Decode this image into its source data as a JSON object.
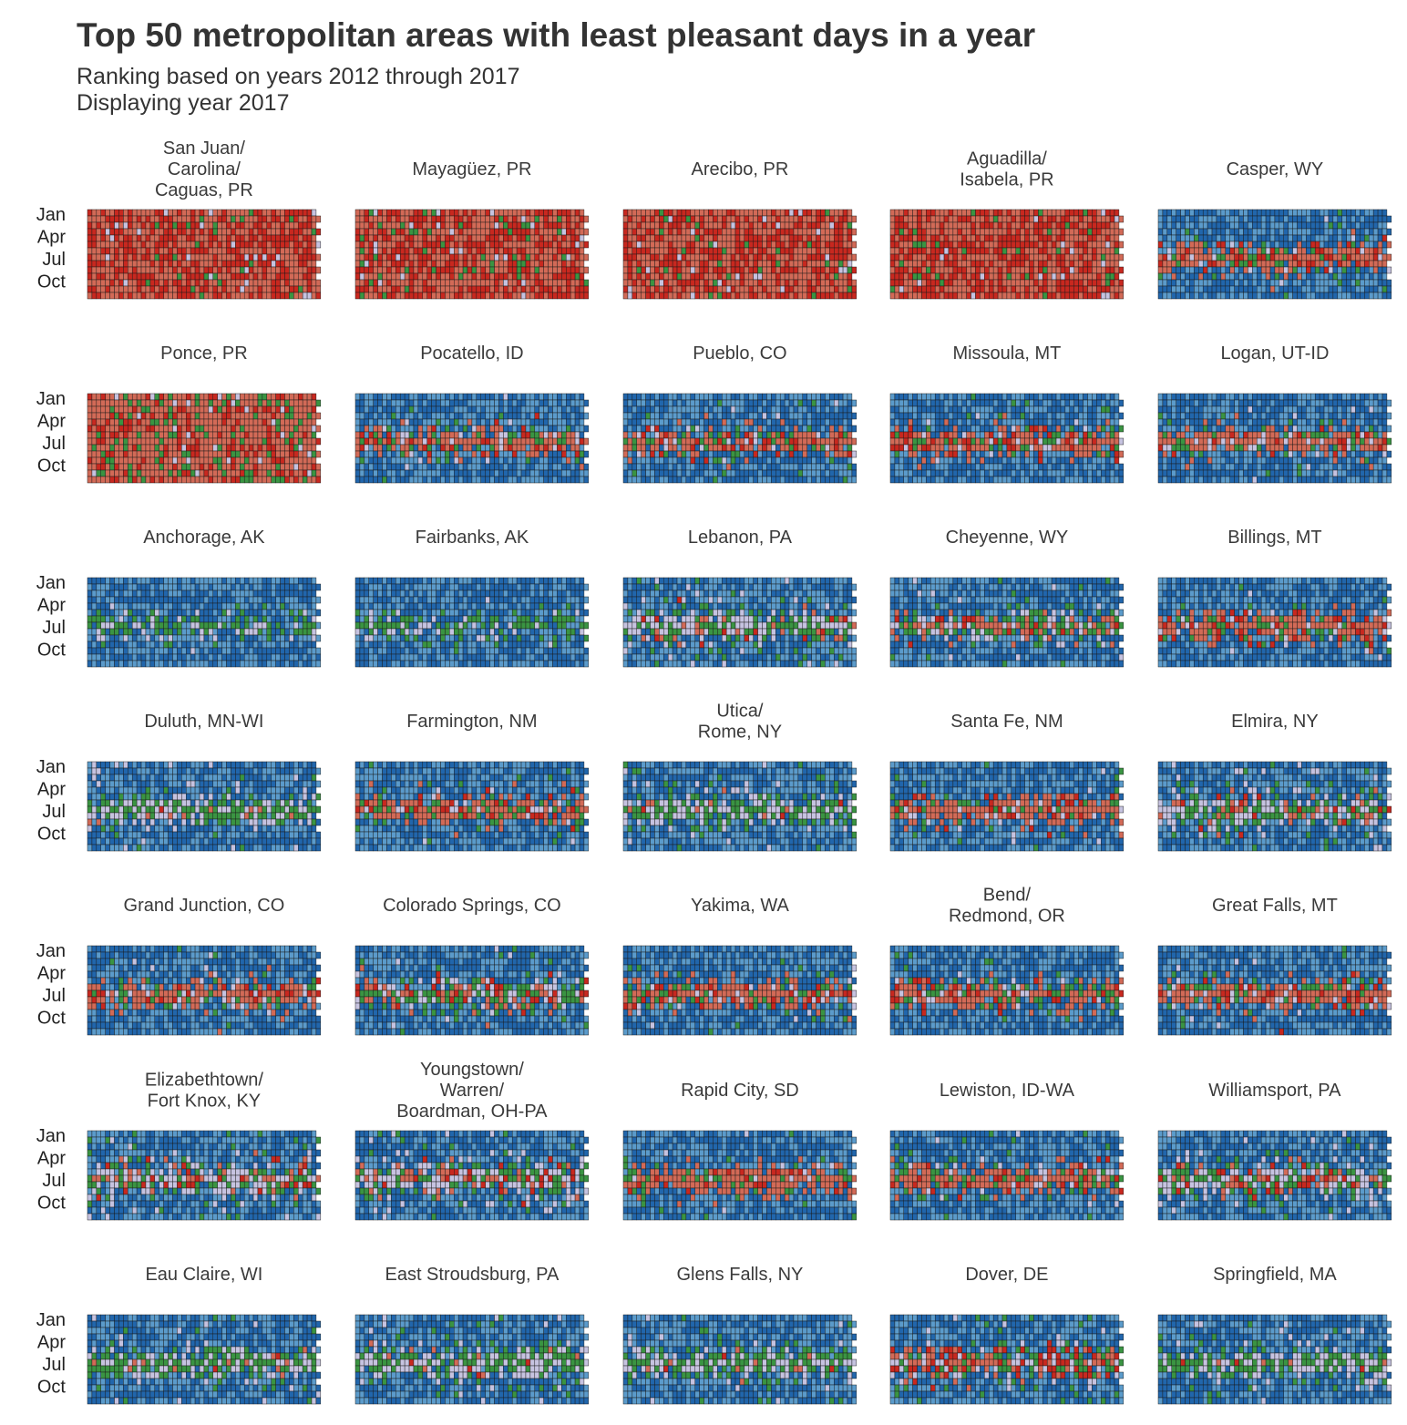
{
  "title": "Top 50 metropolitan areas with least pleasant days in a year",
  "subtitle_line1": "Ranking based on years 2012 through 2017",
  "subtitle_line2": "Displaying year 2017",
  "chart_data": {
    "type": "heatmap",
    "description_note": "",
    "y_tick_labels": [
      "Jan",
      "Apr",
      "Jul",
      "Oct"
    ],
    "colors": {
      "cold_dark": "#2166ac",
      "cold_light": "#5b9bcb",
      "pleasant": "#c6c3e0",
      "mild": "#3a9442",
      "hot_light": "#d26a57",
      "hot_dark": "#c8281f"
    },
    "panels": [
      {
        "name": [
          "San Juan/",
          "Carolina/",
          "Caguas, PR"
        ],
        "profile": "tropical"
      },
      {
        "name": [
          "Mayagüez, PR"
        ],
        "profile": "tropical"
      },
      {
        "name": [
          "Arecibo, PR"
        ],
        "profile": "tropical"
      },
      {
        "name": [
          "Aguadilla/",
          "Isabela, PR"
        ],
        "profile": "tropical"
      },
      {
        "name": [
          "Casper, WY"
        ],
        "profile": "cold_hot"
      },
      {
        "name": [
          "Ponce, PR"
        ],
        "profile": "tropical_light"
      },
      {
        "name": [
          "Pocatello, ID"
        ],
        "profile": "cold_hot"
      },
      {
        "name": [
          "Pueblo, CO"
        ],
        "profile": "cold_hot"
      },
      {
        "name": [
          "Missoula, MT"
        ],
        "profile": "cold_hot"
      },
      {
        "name": [
          "Logan, UT-ID"
        ],
        "profile": "cold_hot"
      },
      {
        "name": [
          "Anchorage, AK"
        ],
        "profile": "cold"
      },
      {
        "name": [
          "Fairbanks, AK"
        ],
        "profile": "cold"
      },
      {
        "name": [
          "Lebanon, PA"
        ],
        "profile": "humid"
      },
      {
        "name": [
          "Cheyenne, WY"
        ],
        "profile": "cold_mixed"
      },
      {
        "name": [
          "Billings, MT"
        ],
        "profile": "cold_hot"
      },
      {
        "name": [
          "Duluth, MN-WI"
        ],
        "profile": "cold_pleasant"
      },
      {
        "name": [
          "Farmington, NM"
        ],
        "profile": "cold_hot"
      },
      {
        "name": [
          "Utica/",
          "Rome, NY"
        ],
        "profile": "cold_pleasant"
      },
      {
        "name": [
          "Santa Fe, NM"
        ],
        "profile": "cold_hot"
      },
      {
        "name": [
          "Elmira, NY"
        ],
        "profile": "humid"
      },
      {
        "name": [
          "Grand Junction, CO"
        ],
        "profile": "cold_hot"
      },
      {
        "name": [
          "Colorado Springs, CO"
        ],
        "profile": "cold_mixed"
      },
      {
        "name": [
          "Yakima, WA"
        ],
        "profile": "cold_hot"
      },
      {
        "name": [
          "Bend/",
          "Redmond, OR"
        ],
        "profile": "cold_hot"
      },
      {
        "name": [
          "Great Falls, MT"
        ],
        "profile": "cold_hot"
      },
      {
        "name": [
          "Elizabethtown/",
          "Fort Knox, KY"
        ],
        "profile": "humid"
      },
      {
        "name": [
          "Youngstown/",
          "Warren/",
          "Boardman, OH-PA"
        ],
        "profile": "humid"
      },
      {
        "name": [
          "Rapid City, SD"
        ],
        "profile": "cold_hot"
      },
      {
        "name": [
          "Lewiston, ID-WA"
        ],
        "profile": "cold_hot"
      },
      {
        "name": [
          "Williamsport, PA"
        ],
        "profile": "humid"
      },
      {
        "name": [
          "Eau Claire, WI"
        ],
        "profile": "cold_pleasant"
      },
      {
        "name": [
          "East Stroudsburg, PA"
        ],
        "profile": "cold_pleasant"
      },
      {
        "name": [
          "Glens Falls, NY"
        ],
        "profile": "cold_pleasant"
      },
      {
        "name": [
          "Dover, DE"
        ],
        "profile": "humid_hot"
      },
      {
        "name": [
          "Springfield, MA"
        ],
        "profile": "cold_pleasant"
      }
    ]
  }
}
